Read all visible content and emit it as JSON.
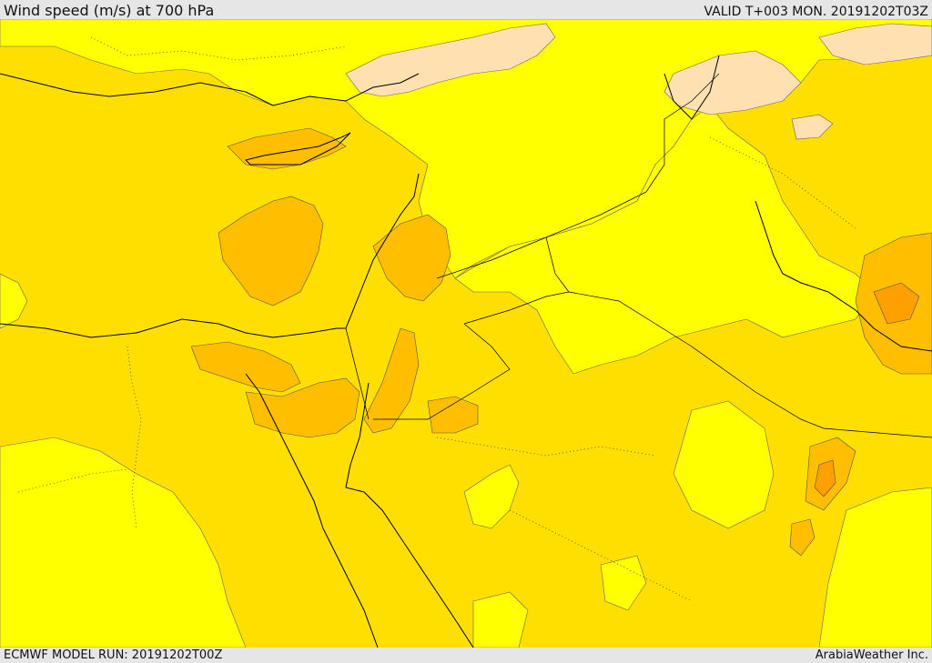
{
  "header": {
    "title": "Wind speed (m/s) at 700 hPa",
    "valid": "VALID T+003 MON. 20191202T03Z"
  },
  "footer": {
    "model_run": "ECMWF MODEL RUN: 20191202T00Z",
    "credit": "ArabiaWeather Inc."
  },
  "colors": {
    "band_calm": "#ffe0b0",
    "band_light": "#ffff00",
    "band_moderate": "#ffdf00",
    "band_fresh": "#ffbf00",
    "band_strong": "#ff9f00",
    "coastline": "#000000",
    "contour": "#555555"
  }
}
